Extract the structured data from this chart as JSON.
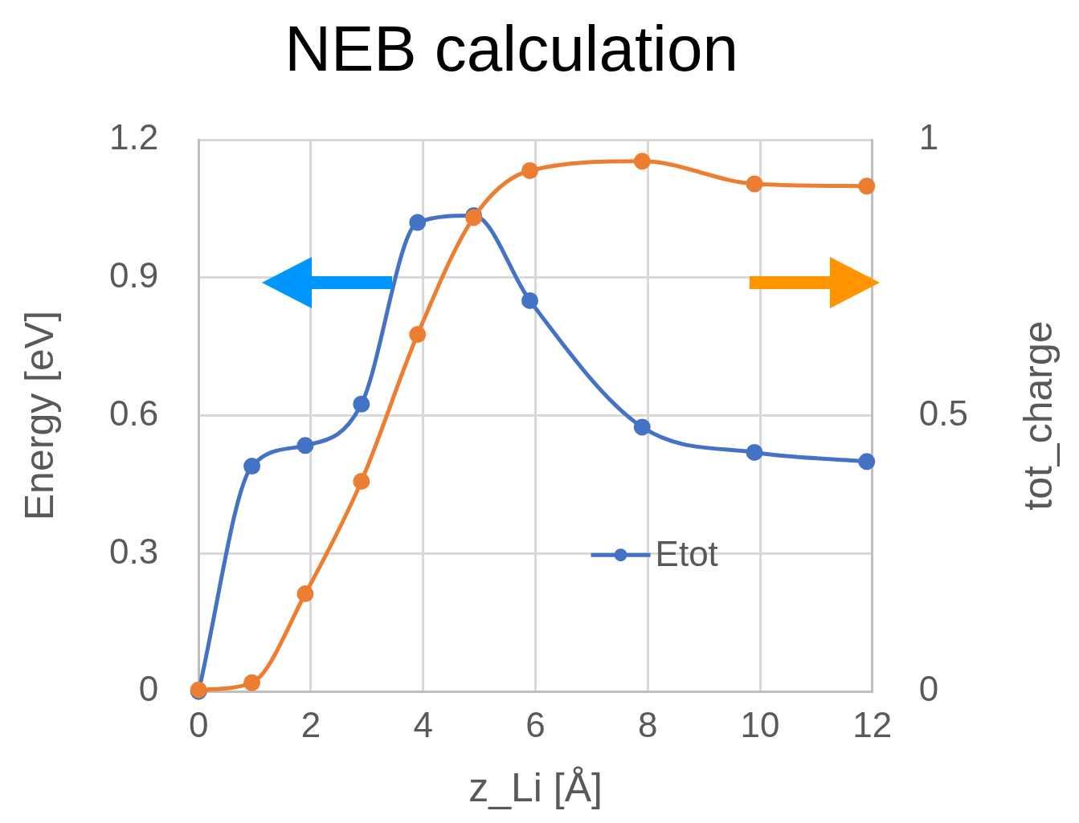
{
  "chart_data": {
    "type": "line",
    "title": "NEB calculation",
    "xlabel": "z_Li [Å]",
    "ylabel": "Energy [eV]",
    "y2label": "tot_charge",
    "xlim": [
      0,
      12
    ],
    "xticks": [
      0,
      2,
      4,
      6,
      8,
      10,
      12
    ],
    "ylim": [
      0,
      1.2
    ],
    "yticks": [
      0,
      0.3,
      0.6,
      0.9,
      1.2
    ],
    "y2lim": [
      0,
      1
    ],
    "y2ticks": [
      0,
      0.5,
      1
    ],
    "grid": true,
    "legend": "bottom right",
    "marker": "circle",
    "line_style": "solid",
    "x": [
      0,
      0.95,
      1.9,
      2.9,
      3.9,
      4.9,
      5.9,
      7.9,
      9.9,
      11.9
    ],
    "series": [
      {
        "name": "Etot",
        "color": "#4472c4",
        "values": [
          0,
          0.49,
          0.535,
          0.625,
          1.02,
          1.035,
          0.85,
          0.575,
          0.52,
          0.5
        ]
      },
      {
        "color": "#ed7d31",
        "axis": "y2",
        "values": [
          0.003,
          0.016,
          0.177,
          0.381,
          0.647,
          0.859,
          0.944,
          0.961,
          0.92,
          0.916
        ]
      }
    ]
  }
}
